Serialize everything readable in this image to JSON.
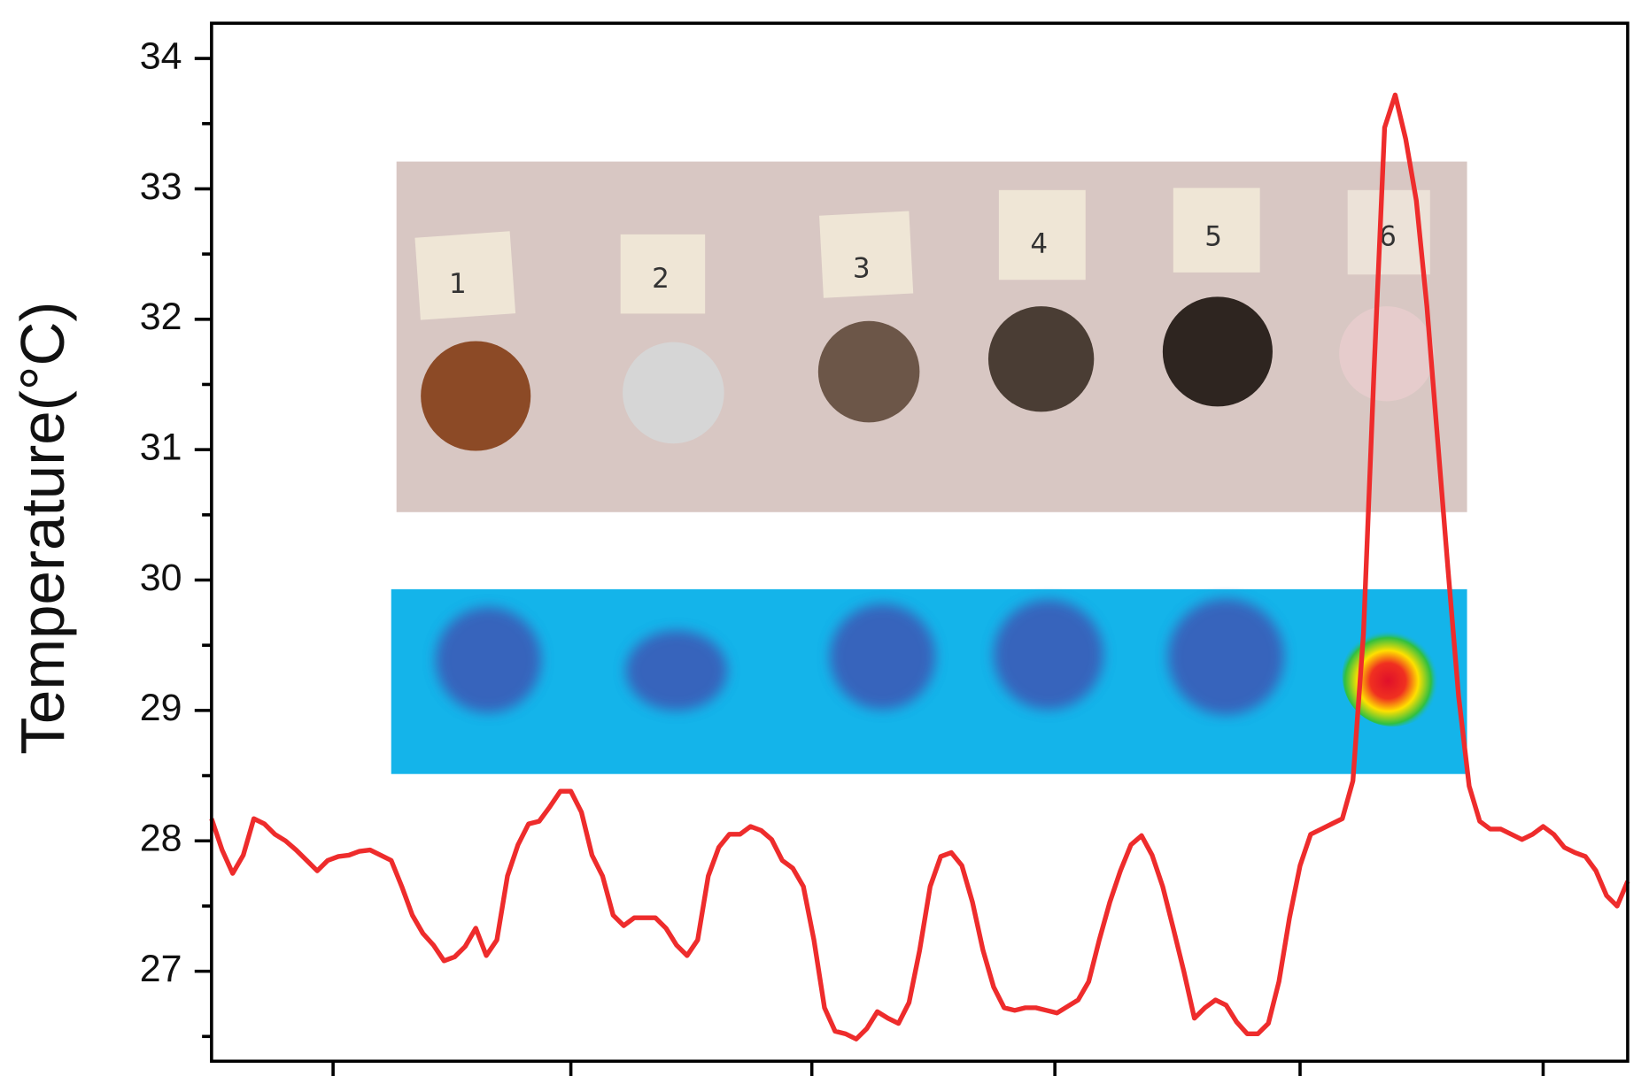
{
  "chart_data": {
    "type": "line",
    "y_label": "Temperature(°C)",
    "ylim": [
      26.31,
      34.27
    ],
    "yticks": [
      27,
      28,
      29,
      30,
      31,
      32,
      33,
      34
    ],
    "yminorticks": [
      26.5,
      27.5,
      28.5,
      29.5,
      30.5,
      31.5,
      32.5,
      33.5
    ],
    "color": "#ee2c2c",
    "annotations": [
      "1",
      "2",
      "3",
      "4",
      "5",
      "6"
    ],
    "values": [
      28.17,
      27.93,
      27.75,
      27.89,
      28.17,
      28.13,
      28.05,
      28.0,
      27.93,
      27.85,
      27.77,
      27.85,
      27.88,
      27.89,
      27.92,
      27.93,
      27.89,
      27.85,
      27.65,
      27.43,
      27.29,
      27.2,
      27.08,
      27.11,
      27.19,
      27.33,
      27.12,
      27.24,
      27.73,
      27.97,
      28.13,
      28.15,
      28.26,
      28.38,
      28.38,
      28.22,
      27.89,
      27.73,
      27.43,
      27.35,
      27.41,
      27.41,
      27.41,
      27.33,
      27.2,
      27.12,
      27.24,
      27.73,
      27.95,
      28.05,
      28.05,
      28.11,
      28.08,
      28.01,
      27.85,
      27.79,
      27.65,
      27.24,
      26.72,
      26.54,
      26.52,
      26.48,
      26.56,
      26.69,
      26.64,
      26.6,
      26.76,
      27.16,
      27.65,
      27.88,
      27.91,
      27.81,
      27.53,
      27.16,
      26.88,
      26.72,
      26.7,
      26.72,
      26.72,
      26.7,
      26.68,
      26.73,
      26.78,
      26.92,
      27.24,
      27.53,
      27.77,
      27.97,
      28.04,
      27.89,
      27.65,
      27.33,
      27.0,
      26.64,
      26.72,
      26.78,
      26.74,
      26.61,
      26.52,
      26.52,
      26.6,
      26.92,
      27.41,
      27.81,
      28.05,
      28.09,
      28.13,
      28.17,
      28.46,
      29.59,
      31.61,
      33.47,
      33.72,
      33.38,
      32.91,
      32.1,
      31.09,
      30.08,
      29.11,
      28.42,
      28.15,
      28.09,
      28.09,
      28.05,
      28.01,
      28.05,
      28.11,
      28.05,
      27.95,
      27.91,
      27.88,
      27.77,
      27.58,
      27.5,
      27.69
    ]
  }
}
